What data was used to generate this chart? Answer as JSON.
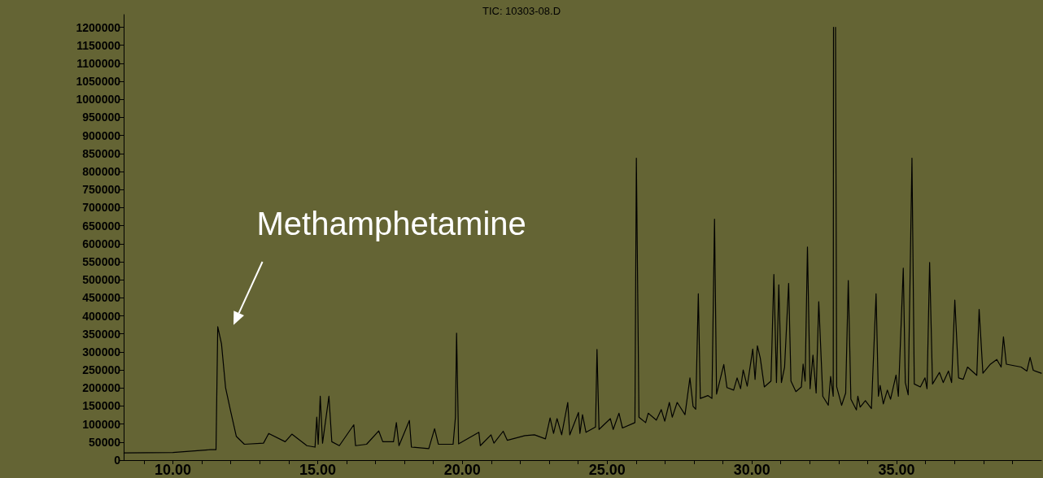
{
  "chart_data": {
    "type": "line",
    "title": "TIC: 10303-08.D",
    "annotations": [
      {
        "text": "Methamphetamine",
        "x": 11.55,
        "y": 370000
      }
    ],
    "xlim": [
      8.3,
      40.0
    ],
    "xticks": [
      {
        "value": 9,
        "label": null
      },
      {
        "value": 10,
        "label": "10.00"
      },
      {
        "value": 11,
        "label": null
      },
      {
        "value": 12,
        "label": null
      },
      {
        "value": 13,
        "label": null
      },
      {
        "value": 14,
        "label": null
      },
      {
        "value": 15,
        "label": "15.00"
      },
      {
        "value": 16,
        "label": null
      },
      {
        "value": 17,
        "label": null
      },
      {
        "value": 18,
        "label": null
      },
      {
        "value": 19,
        "label": null
      },
      {
        "value": 20,
        "label": "20.00"
      },
      {
        "value": 21,
        "label": null
      },
      {
        "value": 22,
        "label": null
      },
      {
        "value": 23,
        "label": null
      },
      {
        "value": 24,
        "label": null
      },
      {
        "value": 25,
        "label": "25.00"
      },
      {
        "value": 26,
        "label": null
      },
      {
        "value": 27,
        "label": null
      },
      {
        "value": 28,
        "label": null
      },
      {
        "value": 29,
        "label": null
      },
      {
        "value": 30,
        "label": "30.00"
      },
      {
        "value": 31,
        "label": null
      },
      {
        "value": 32,
        "label": null
      },
      {
        "value": 33,
        "label": null
      },
      {
        "value": 34,
        "label": null
      },
      {
        "value": 35,
        "label": "35.00"
      },
      {
        "value": 36,
        "label": null
      },
      {
        "value": 37,
        "label": null
      },
      {
        "value": 38,
        "label": null
      },
      {
        "value": 39,
        "label": null
      }
    ],
    "ylim": [
      0,
      1235000
    ],
    "yticks": [
      0,
      50000,
      100000,
      150000,
      200000,
      250000,
      300000,
      350000,
      400000,
      450000,
      500000,
      550000,
      600000,
      650000,
      700000,
      750000,
      800000,
      850000,
      900000,
      950000,
      1000000,
      1050000,
      1100000,
      1150000,
      1200000
    ],
    "grid": false,
    "marker": "none",
    "line_style": "solid",
    "series": [
      {
        "color": "#000000",
        "x": [
          8.31,
          10.0,
          11.3,
          11.49,
          11.55,
          11.68,
          11.82,
          12.0,
          12.19,
          12.47,
          13.13,
          13.31,
          13.88,
          14.11,
          14.63,
          14.91,
          14.97,
          15.02,
          15.09,
          15.17,
          15.39,
          15.49,
          15.75,
          16.25,
          16.31,
          16.69,
          17.11,
          17.25,
          17.62,
          17.72,
          17.81,
          18.17,
          18.24,
          18.84,
          19.04,
          19.17,
          19.68,
          19.76,
          19.8,
          19.87,
          20.57,
          20.62,
          20.99,
          21.09,
          21.41,
          21.55,
          22.16,
          22.49,
          22.87,
          23.03,
          23.15,
          23.27,
          23.43,
          23.64,
          23.71,
          24.01,
          24.06,
          24.15,
          24.27,
          24.6,
          24.65,
          24.72,
          25.11,
          25.21,
          25.41,
          25.53,
          25.96,
          26.01,
          26.1,
          26.33,
          26.42,
          26.7,
          26.87,
          26.99,
          27.15,
          27.25,
          27.42,
          27.69,
          27.86,
          27.97,
          28.06,
          28.15,
          28.22,
          28.48,
          28.62,
          28.71,
          28.78,
          29.03,
          29.14,
          29.37,
          29.49,
          29.61,
          29.7,
          29.84,
          30.03,
          30.11,
          30.19,
          30.29,
          30.43,
          30.66,
          30.76,
          30.85,
          30.93,
          31.02,
          31.13,
          31.27,
          31.35,
          31.52,
          31.71,
          31.77,
          31.84,
          31.92,
          32.01,
          32.11,
          32.22,
          32.31,
          32.45,
          32.64,
          32.72,
          32.81,
          32.82,
          32.85,
          32.89,
          32.93,
          33.1,
          33.24,
          33.33,
          33.42,
          33.61,
          33.66,
          33.74,
          33.92,
          34.13,
          34.29,
          34.37,
          34.43,
          34.54,
          34.68,
          34.79,
          34.98,
          35.06,
          35.23,
          35.3,
          35.4,
          35.53,
          35.61,
          35.82,
          35.98,
          36.05,
          36.14,
          36.24,
          36.48,
          36.61,
          36.79,
          36.9,
          37.01,
          37.14,
          37.3,
          37.45,
          37.77,
          37.85,
          37.98,
          38.24,
          38.46,
          38.61,
          38.69,
          38.79,
          39.3,
          39.5,
          39.61,
          39.72,
          40.0
        ],
        "values": [
          20000,
          21000,
          29000,
          29000,
          370000,
          322000,
          201000,
          134000,
          66000,
          44000,
          47000,
          74000,
          51000,
          72000,
          40000,
          36000,
          119000,
          44000,
          177000,
          47000,
          177000,
          51000,
          40000,
          98000,
          40000,
          44000,
          81000,
          51000,
          51000,
          104000,
          40000,
          110000,
          36000,
          32000,
          87000,
          44000,
          44000,
          119000,
          352000,
          45000,
          77000,
          40000,
          70000,
          47000,
          80000,
          55000,
          68000,
          70000,
          59000,
          117000,
          74000,
          115000,
          70000,
          160000,
          70000,
          132000,
          74000,
          126000,
          77000,
          92000,
          307000,
          85000,
          115000,
          85000,
          130000,
          89000,
          104000,
          837000,
          119000,
          104000,
          130000,
          111000,
          140000,
          108000,
          160000,
          119000,
          160000,
          126000,
          228000,
          149000,
          141000,
          461000,
          171000,
          179000,
          171000,
          668000,
          183000,
          265000,
          201000,
          194000,
          228000,
          198000,
          250000,
          205000,
          308000,
          224000,
          317000,
          283000,
          203000,
          219000,
          515000,
          215000,
          486000,
          215000,
          258000,
          490000,
          219000,
          190000,
          203000,
          266000,
          219000,
          591000,
          198000,
          291000,
          186000,
          439000,
          177000,
          152000,
          232000,
          177000,
          1200000,
          null,
          1200000,
          203000,
          152000,
          186000,
          498000,
          169000,
          139000,
          177000,
          147000,
          165000,
          143000,
          461000,
          177000,
          207000,
          156000,
          194000,
          169000,
          236000,
          177000,
          532000,
          215000,
          181000,
          837000,
          211000,
          203000,
          228000,
          198000,
          548000,
          211000,
          243000,
          215000,
          247000,
          215000,
          444000,
          228000,
          224000,
          258000,
          235000,
          418000,
          241000,
          266000,
          279000,
          258000,
          342000,
          266000,
          258000,
          247000,
          285000,
          249000,
          241000
        ]
      }
    ]
  }
}
